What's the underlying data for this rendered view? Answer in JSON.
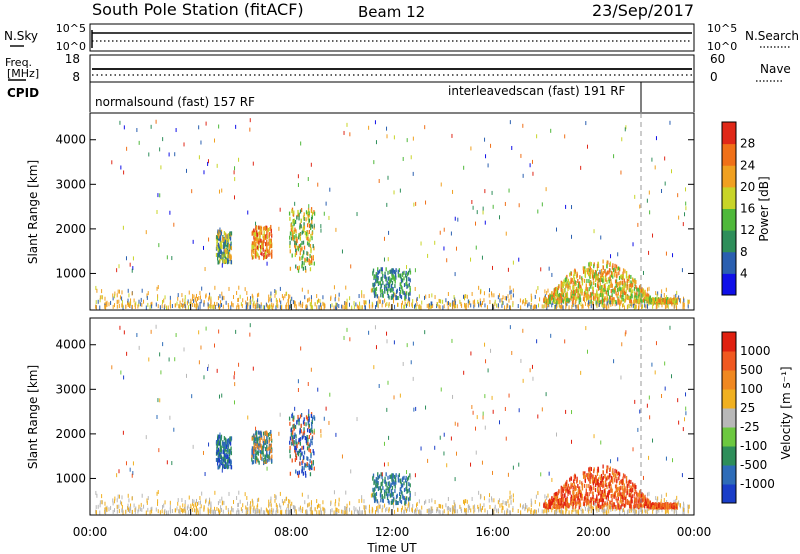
{
  "header": {
    "station": "South Pole Station (fitACF)",
    "beam": "Beam 12",
    "date": "23/Sep/2017"
  },
  "top_panels": {
    "nsky": {
      "label": "N.Sky",
      "ticks": [
        "10^5",
        "10^0"
      ]
    },
    "nsearch": {
      "label": "N.Search",
      "ticks": [
        "10^5",
        "10^0"
      ]
    },
    "freq": {
      "label_line1": "Freq.",
      "label_line2": "[MHz]",
      "ticks": [
        "18",
        "8"
      ]
    },
    "nave": {
      "label": "Nave",
      "ticks": [
        "60",
        "0"
      ]
    },
    "cpid": {
      "label": "CPID",
      "modes": [
        "normalsound (fast) 157 RF",
        "interleavedscan (fast) 191 RF"
      ]
    }
  },
  "chart_data": [
    {
      "type": "heatmap",
      "ylabel": "Slant Range [km]",
      "xlim_hours": [
        0,
        24
      ],
      "ylim_km": [
        180,
        4600
      ],
      "yticks": [
        "1000",
        "2000",
        "3000",
        "4000"
      ],
      "colorbar": {
        "label": "Power [dB]",
        "ticks": [
          "4",
          "8",
          "12",
          "16",
          "20",
          "24",
          "28"
        ],
        "colors": [
          "#1010e8",
          "#2a5fb0",
          "#2e8e5a",
          "#4fb83a",
          "#c8d428",
          "#f0a020",
          "#f07018",
          "#e02818"
        ]
      },
      "echo_regions": [
        {
          "x": [
            0.2,
            24
          ],
          "y": [
            180,
            700
          ],
          "note": "ground scatter band"
        },
        {
          "x": [
            5.0,
            5.6
          ],
          "y": [
            1200,
            1900
          ]
        },
        {
          "x": [
            6.4,
            7.2
          ],
          "y": [
            1300,
            2000
          ]
        },
        {
          "x": [
            7.9,
            8.9
          ],
          "y": [
            1000,
            2400
          ]
        },
        {
          "x": [
            11.2,
            12.7
          ],
          "y": [
            400,
            1050
          ]
        },
        {
          "x": [
            18.0,
            23.3
          ],
          "y": [
            300,
            1250
          ]
        }
      ]
    },
    {
      "type": "heatmap",
      "ylabel": "Slant Range [km]",
      "xlabel": "Time UT",
      "xticks": [
        "00:00",
        "04:00",
        "08:00",
        "12:00",
        "16:00",
        "20:00",
        "00:00"
      ],
      "yticks": [
        "1000",
        "2000",
        "3000",
        "4000"
      ],
      "colorbar": {
        "label": "Velocity [m s⁻¹]",
        "ticks": [
          "1000",
          "500",
          "100",
          "25",
          "-25",
          "-100",
          "-500",
          "-1000"
        ],
        "colors": [
          "#1a3ec8",
          "#2e6cb8",
          "#2e8e5a",
          "#6cc840",
          "#b8b8b8",
          "#f0b020",
          "#f08820",
          "#f05820",
          "#e02010"
        ]
      }
    }
  ]
}
